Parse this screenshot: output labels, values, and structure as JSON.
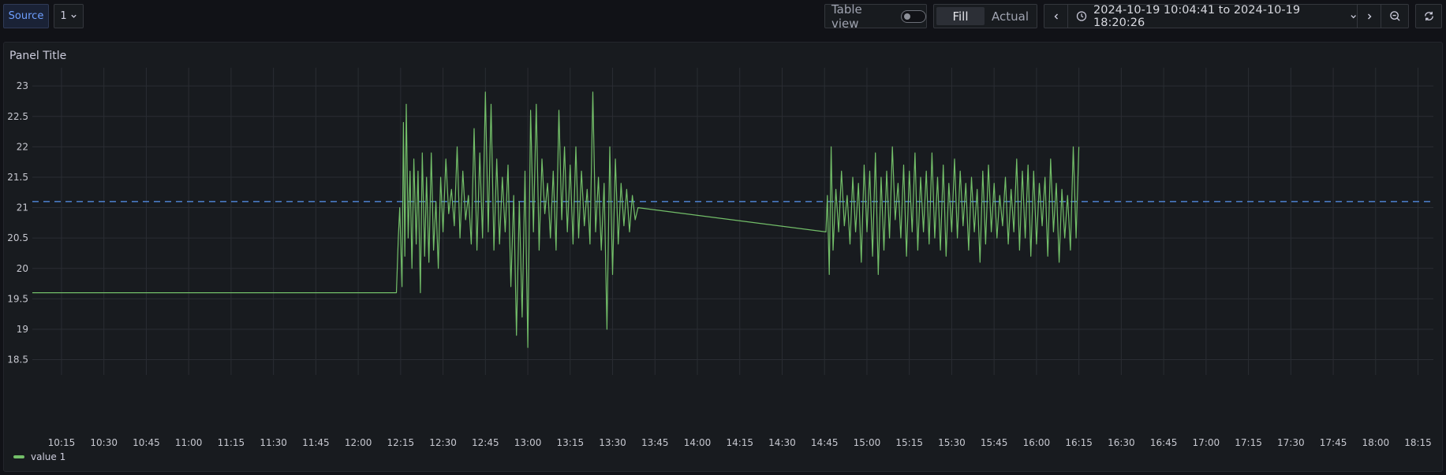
{
  "toolbar": {
    "source_label": "Source",
    "variable_value": "1",
    "table_view_label": "Table view",
    "fill_label": "Fill",
    "actual_label": "Actual",
    "time_from": "2024-10-19 10:04:41",
    "time_to_word": "to",
    "time_to": "2024-10-19 18:20:26"
  },
  "icons": [
    "chevron-down-icon",
    "chevron-left-icon",
    "clock-icon",
    "chevron-right-icon",
    "zoom-out-icon",
    "refresh-icon"
  ],
  "panel": {
    "title": "Panel Title"
  },
  "chart_data": {
    "type": "line",
    "title": "Panel Title",
    "ylim": [
      18.3,
      23.3
    ],
    "y_ticks": [
      "23",
      "22.5",
      "22",
      "21.5",
      "21",
      "20.5",
      "20",
      "19.5",
      "19",
      "18.5"
    ],
    "x_ticks": [
      "10:15",
      "10:30",
      "10:45",
      "11:00",
      "11:15",
      "11:30",
      "11:45",
      "12:00",
      "12:15",
      "12:30",
      "12:45",
      "13:00",
      "13:15",
      "13:30",
      "13:45",
      "14:00",
      "14:15",
      "14:30",
      "14:45",
      "15:00",
      "15:15",
      "15:30",
      "15:45",
      "16:00",
      "16:15",
      "16:30",
      "16:45",
      "17:00",
      "17:15",
      "17:30",
      "17:45",
      "18:00",
      "18:15"
    ],
    "grid": true,
    "legend_placement": "bottom-left",
    "threshold": {
      "value": 21.1,
      "color": "#5794f2",
      "style": "dashed"
    },
    "series": [
      {
        "name": "value 1",
        "color": "#73bf69",
        "points": [
          [
            "10:04:41",
            19.6
          ],
          [
            "12:13:30",
            19.6
          ],
          [
            "12:14:10",
            20.5
          ],
          [
            "12:14:40",
            21.0
          ],
          [
            "12:15:30",
            19.7
          ],
          [
            "12:16:00",
            22.4
          ],
          [
            "12:16:30",
            20.2
          ],
          [
            "12:17:00",
            22.7
          ],
          [
            "12:17:40",
            20.5
          ],
          [
            "12:18:20",
            21.6
          ],
          [
            "12:19:00",
            20.0
          ],
          [
            "12:19:40",
            21.8
          ],
          [
            "12:20:30",
            20.4
          ],
          [
            "12:21:10",
            21.6
          ],
          [
            "12:22:00",
            19.6
          ],
          [
            "12:22:40",
            21.9
          ],
          [
            "12:23:30",
            20.2
          ],
          [
            "12:24:10",
            21.5
          ],
          [
            "12:25:00",
            20.1
          ],
          [
            "12:25:50",
            21.9
          ],
          [
            "12:26:40",
            20.3
          ],
          [
            "12:27:30",
            21.1
          ],
          [
            "12:28:20",
            20.0
          ],
          [
            "12:29:10",
            21.5
          ],
          [
            "12:30:00",
            20.6
          ],
          [
            "12:31:00",
            21.8
          ],
          [
            "12:32:00",
            20.9
          ],
          [
            "12:33:00",
            21.3
          ],
          [
            "12:34:00",
            20.7
          ],
          [
            "12:35:00",
            22.0
          ],
          [
            "12:36:00",
            20.5
          ],
          [
            "12:37:00",
            21.6
          ],
          [
            "12:38:00",
            20.8
          ],
          [
            "12:39:00",
            21.2
          ],
          [
            "12:40:00",
            20.4
          ],
          [
            "12:41:00",
            22.3
          ],
          [
            "12:42:00",
            20.3
          ],
          [
            "12:43:00",
            21.9
          ],
          [
            "12:44:00",
            20.5
          ],
          [
            "12:45:00",
            22.9
          ],
          [
            "12:46:00",
            20.6
          ],
          [
            "12:47:00",
            22.7
          ],
          [
            "12:48:00",
            20.3
          ],
          [
            "12:49:00",
            21.8
          ],
          [
            "12:50:00",
            20.4
          ],
          [
            "12:51:00",
            21.5
          ],
          [
            "12:52:00",
            20.6
          ],
          [
            "12:53:00",
            21.7
          ],
          [
            "12:54:00",
            19.7
          ],
          [
            "12:55:00",
            21.2
          ],
          [
            "12:56:00",
            18.9
          ],
          [
            "12:57:00",
            21.1
          ],
          [
            "12:58:00",
            19.2
          ],
          [
            "12:59:00",
            21.6
          ],
          [
            "13:00:00",
            18.7
          ],
          [
            "13:01:00",
            22.6
          ],
          [
            "13:02:00",
            20.6
          ],
          [
            "13:03:00",
            22.7
          ],
          [
            "13:04:00",
            20.3
          ],
          [
            "13:05:00",
            21.8
          ],
          [
            "13:06:00",
            20.9
          ],
          [
            "13:07:00",
            21.4
          ],
          [
            "13:08:00",
            20.5
          ],
          [
            "13:09:00",
            21.6
          ],
          [
            "13:10:00",
            20.3
          ],
          [
            "13:11:00",
            22.6
          ],
          [
            "13:12:00",
            20.8
          ],
          [
            "13:13:00",
            22.0
          ],
          [
            "13:14:00",
            20.6
          ],
          [
            "13:15:00",
            21.7
          ],
          [
            "13:16:00",
            20.4
          ],
          [
            "13:17:00",
            22.0
          ],
          [
            "13:18:00",
            20.5
          ],
          [
            "13:19:00",
            21.6
          ],
          [
            "13:20:00",
            20.7
          ],
          [
            "13:21:00",
            21.3
          ],
          [
            "13:22:00",
            20.4
          ],
          [
            "13:23:00",
            22.9
          ],
          [
            "13:24:00",
            20.6
          ],
          [
            "13:25:00",
            21.5
          ],
          [
            "13:26:00",
            20.3
          ],
          [
            "13:27:00",
            21.4
          ],
          [
            "13:28:00",
            19.0
          ],
          [
            "13:29:00",
            22.0
          ],
          [
            "13:30:00",
            19.9
          ],
          [
            "13:31:00",
            21.8
          ],
          [
            "13:32:00",
            20.4
          ],
          [
            "13:33:00",
            21.4
          ],
          [
            "13:34:00",
            20.7
          ],
          [
            "13:35:00",
            21.3
          ],
          [
            "13:36:00",
            20.6
          ],
          [
            "13:37:00",
            21.2
          ],
          [
            "13:38:00",
            20.8
          ],
          [
            "13:39:00",
            21.0
          ],
          [
            "14:45:30",
            20.6
          ],
          [
            "14:46:00",
            21.2
          ],
          [
            "14:46:40",
            19.9
          ],
          [
            "14:47:20",
            22.0
          ],
          [
            "14:48:00",
            20.3
          ],
          [
            "14:49:00",
            21.3
          ],
          [
            "14:50:00",
            20.6
          ],
          [
            "14:51:00",
            21.6
          ],
          [
            "14:52:00",
            20.7
          ],
          [
            "14:53:00",
            21.2
          ],
          [
            "14:54:00",
            20.4
          ],
          [
            "14:55:00",
            21.5
          ],
          [
            "14:56:00",
            20.6
          ],
          [
            "14:57:00",
            21.4
          ],
          [
            "14:58:00",
            20.1
          ],
          [
            "14:59:00",
            21.7
          ],
          [
            "15:00:00",
            20.6
          ],
          [
            "15:01:00",
            21.6
          ],
          [
            "15:02:00",
            20.2
          ],
          [
            "15:03:00",
            21.9
          ],
          [
            "15:04:00",
            19.9
          ],
          [
            "15:05:00",
            21.5
          ],
          [
            "15:06:00",
            20.3
          ],
          [
            "15:07:00",
            21.6
          ],
          [
            "15:08:00",
            20.5
          ],
          [
            "15:09:00",
            22.0
          ],
          [
            "15:10:00",
            20.8
          ],
          [
            "15:11:00",
            21.4
          ],
          [
            "15:12:00",
            20.5
          ],
          [
            "15:13:00",
            21.7
          ],
          [
            "15:14:00",
            20.2
          ],
          [
            "15:15:00",
            21.6
          ],
          [
            "15:16:00",
            20.6
          ],
          [
            "15:17:00",
            21.9
          ],
          [
            "15:18:00",
            20.3
          ],
          [
            "15:19:00",
            21.5
          ],
          [
            "15:20:00",
            20.6
          ],
          [
            "15:21:00",
            21.6
          ],
          [
            "15:22:00",
            20.4
          ],
          [
            "15:23:00",
            21.9
          ],
          [
            "15:24:00",
            20.5
          ],
          [
            "15:25:00",
            21.5
          ],
          [
            "15:26:00",
            20.3
          ],
          [
            "15:27:00",
            21.7
          ],
          [
            "15:28:00",
            20.2
          ],
          [
            "15:29:00",
            21.4
          ],
          [
            "15:30:00",
            20.6
          ],
          [
            "15:31:00",
            21.8
          ],
          [
            "15:32:00",
            20.5
          ],
          [
            "15:33:00",
            21.6
          ],
          [
            "15:34:00",
            20.7
          ],
          [
            "15:35:00",
            21.4
          ],
          [
            "15:36:00",
            20.3
          ],
          [
            "15:37:00",
            21.5
          ],
          [
            "15:38:00",
            20.6
          ],
          [
            "15:39:00",
            21.3
          ],
          [
            "15:40:00",
            20.1
          ],
          [
            "15:41:00",
            21.6
          ],
          [
            "15:42:00",
            20.4
          ],
          [
            "15:43:00",
            21.7
          ],
          [
            "15:44:00",
            20.6
          ],
          [
            "15:45:00",
            21.4
          ],
          [
            "15:46:00",
            20.5
          ],
          [
            "15:47:00",
            21.2
          ],
          [
            "15:48:00",
            20.7
          ],
          [
            "15:49:00",
            21.5
          ],
          [
            "15:50:00",
            20.4
          ],
          [
            "15:51:00",
            21.3
          ],
          [
            "15:52:00",
            20.6
          ],
          [
            "15:53:00",
            21.8
          ],
          [
            "15:54:00",
            20.3
          ],
          [
            "15:55:00",
            21.6
          ],
          [
            "15:56:00",
            20.5
          ],
          [
            "15:57:00",
            21.7
          ],
          [
            "15:58:00",
            20.2
          ],
          [
            "15:59:00",
            21.6
          ],
          [
            "16:00:00",
            20.4
          ],
          [
            "16:01:00",
            21.4
          ],
          [
            "16:02:00",
            20.7
          ],
          [
            "16:03:00",
            21.5
          ],
          [
            "16:04:00",
            20.2
          ],
          [
            "16:05:00",
            21.8
          ],
          [
            "16:06:00",
            20.6
          ],
          [
            "16:07:00",
            21.4
          ],
          [
            "16:08:00",
            20.1
          ],
          [
            "16:09:00",
            21.3
          ],
          [
            "16:10:00",
            20.5
          ],
          [
            "16:11:00",
            21.2
          ],
          [
            "16:12:00",
            20.3
          ],
          [
            "16:13:00",
            22.0
          ],
          [
            "16:14:00",
            20.5
          ],
          [
            "16:15:00",
            22.0
          ]
        ]
      }
    ]
  }
}
